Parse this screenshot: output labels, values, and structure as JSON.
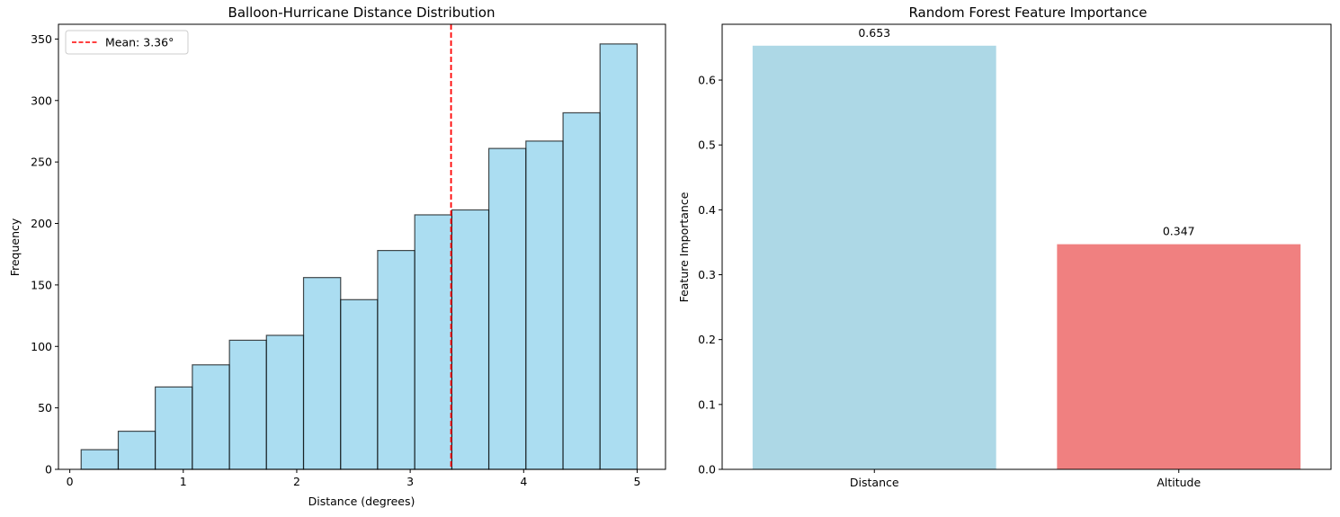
{
  "chart_data": [
    {
      "type": "bar",
      "subtype": "histogram",
      "title": "Balloon-Hurricane Distance Distribution",
      "xlabel": "Distance (degrees)",
      "ylabel": "Frequency",
      "xlim": [
        -0.1,
        5.25
      ],
      "ylim": [
        0,
        362
      ],
      "xticks": [
        0,
        1,
        2,
        3,
        4,
        5
      ],
      "yticks": [
        0,
        50,
        100,
        150,
        200,
        250,
        300,
        350
      ],
      "bin_edges": [
        0.1,
        0.427,
        0.753,
        1.08,
        1.407,
        1.733,
        2.06,
        2.387,
        2.713,
        3.04,
        3.367,
        3.693,
        4.02,
        4.347,
        4.673,
        5.0
      ],
      "values": [
        16,
        31,
        67,
        85,
        105,
        109,
        156,
        138,
        178,
        207,
        211,
        261,
        267,
        290,
        346
      ],
      "bar_color": "#87CEEB",
      "edge_color": "#000000",
      "mean_line": {
        "value": 3.36,
        "label": "Mean: 3.36°",
        "color": "#ff0000",
        "style": "dashed"
      },
      "legend": {
        "position": "top-left"
      },
      "grid": false
    },
    {
      "type": "bar",
      "title": "Random Forest Feature Importance",
      "xlabel": "",
      "ylabel": "Feature Importance",
      "categories": [
        "Distance",
        "Altitude"
      ],
      "values": [
        0.653,
        0.347
      ],
      "value_labels": [
        "0.653",
        "0.347"
      ],
      "colors": [
        "#ADD8E6",
        "#F08080"
      ],
      "ylim": [
        0,
        0.686
      ],
      "yticks": [
        0.0,
        0.1,
        0.2,
        0.3,
        0.4,
        0.5,
        0.6
      ],
      "grid": false
    }
  ]
}
